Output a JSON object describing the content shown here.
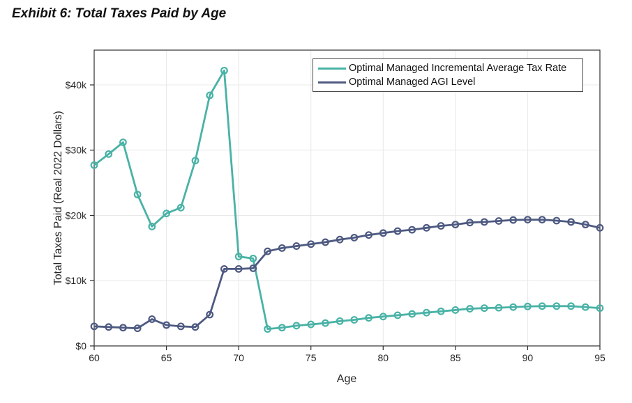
{
  "page": {
    "title": "Exhibit 6: Total Taxes Paid by Age"
  },
  "colors": {
    "series1": "#49b2a6",
    "series2": "#4d5980",
    "grid": "#e8e8e8",
    "axis": "#2e2e2e",
    "text": "#262626",
    "legend_border": "#4a4a4a",
    "background": "#ffffff"
  },
  "chart_data": {
    "type": "line",
    "title": "",
    "xlabel": "Age",
    "ylabel": "Total Taxes Paid (Real 2022 Dollars)",
    "x": [
      60,
      61,
      62,
      63,
      64,
      65,
      66,
      67,
      68,
      69,
      70,
      71,
      72,
      73,
      74,
      75,
      76,
      77,
      78,
      79,
      80,
      81,
      82,
      83,
      84,
      85,
      86,
      87,
      88,
      89,
      90,
      91,
      92,
      93,
      94,
      95
    ],
    "series": [
      {
        "name": "Optimal Managed Incremental Average Tax Rate",
        "color": "#49b2a6",
        "values": [
          27700,
          29400,
          31200,
          23200,
          18300,
          20300,
          21200,
          28400,
          38400,
          42200,
          13700,
          13400,
          2600,
          2800,
          3100,
          3300,
          3500,
          3800,
          4000,
          4300,
          4500,
          4700,
          4900,
          5100,
          5300,
          5500,
          5700,
          5800,
          5850,
          5950,
          6050,
          6100,
          6100,
          6100,
          5950,
          5800
        ]
      },
      {
        "name": "Optimal Managed AGI Level",
        "color": "#4d5980",
        "values": [
          3000,
          2900,
          2800,
          2700,
          4100,
          3200,
          3000,
          2900,
          4800,
          11800,
          11800,
          11900,
          14500,
          15000,
          15300,
          15600,
          15900,
          16300,
          16600,
          17000,
          17300,
          17600,
          17800,
          18100,
          18400,
          18600,
          18900,
          19000,
          19150,
          19300,
          19350,
          19350,
          19200,
          19000,
          18600,
          18100
        ]
      }
    ],
    "xlim": [
      60,
      95
    ],
    "ylim": [
      0,
      45333
    ],
    "xticks": [
      60,
      65,
      70,
      75,
      80,
      85,
      90,
      95
    ],
    "yticks": [
      0,
      10000,
      20000,
      30000,
      40000
    ],
    "ytick_labels": [
      "$0",
      "$10k",
      "$20k",
      "$30k",
      "$40k"
    ],
    "grid": true,
    "legend_position": "top-right",
    "marker": "open-circle"
  }
}
